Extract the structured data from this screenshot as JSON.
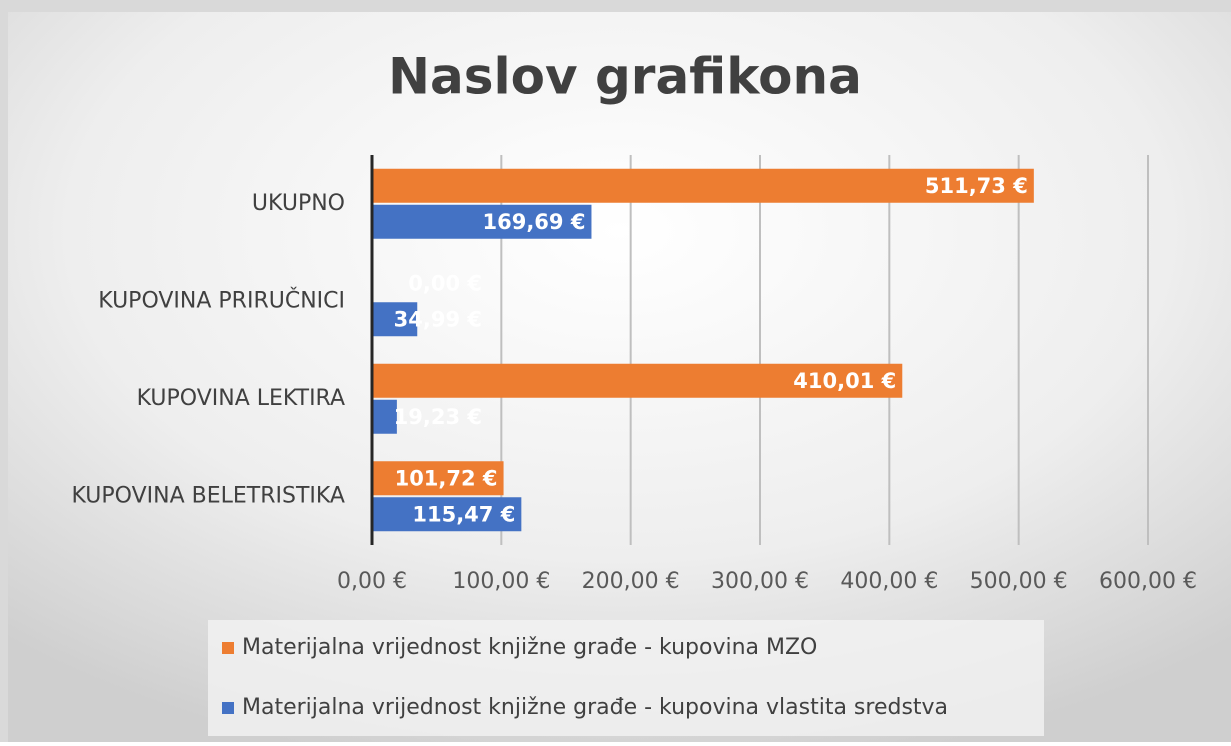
{
  "chart_data": {
    "type": "bar",
    "orientation": "horizontal",
    "title": "Naslov grafikona",
    "categories": [
      "KUPOVINA BELETRISTIKA",
      "KUPOVINA LEKTIRA",
      "KUPOVINA PRIRUČNICI",
      "UKUPNO"
    ],
    "series": [
      {
        "name": "Materijalna vrijednost knjižne građe - kupovina MZO",
        "color": "#ed7d31",
        "values": [
          101.72,
          410.01,
          0,
          511.73
        ],
        "value_labels": [
          "101,72 €",
          "410,01 €",
          "0,00 €",
          "511,73 €"
        ]
      },
      {
        "name": "Materijalna vrijednost knjižne građe - kupovina vlastita sredstva",
        "color": "#4472c4",
        "values": [
          115.47,
          19.23,
          34.99,
          169.69
        ],
        "value_labels": [
          "115,47 €",
          "19,23 €",
          "34,99 €",
          "169,69 €"
        ]
      }
    ],
    "xlim": [
      0,
      600
    ],
    "xticks": [
      {
        "value": 0,
        "label": "0,00 €"
      },
      {
        "value": 100,
        "label": "100,00 €"
      },
      {
        "value": 200,
        "label": "200,00 €"
      },
      {
        "value": 300,
        "label": "300,00 €"
      },
      {
        "value": 400,
        "label": "400,00 €"
      },
      {
        "value": 500,
        "label": "500,00 €"
      },
      {
        "value": 600,
        "label": "600,00 €"
      }
    ],
    "grid": true,
    "legend": "bottom"
  }
}
